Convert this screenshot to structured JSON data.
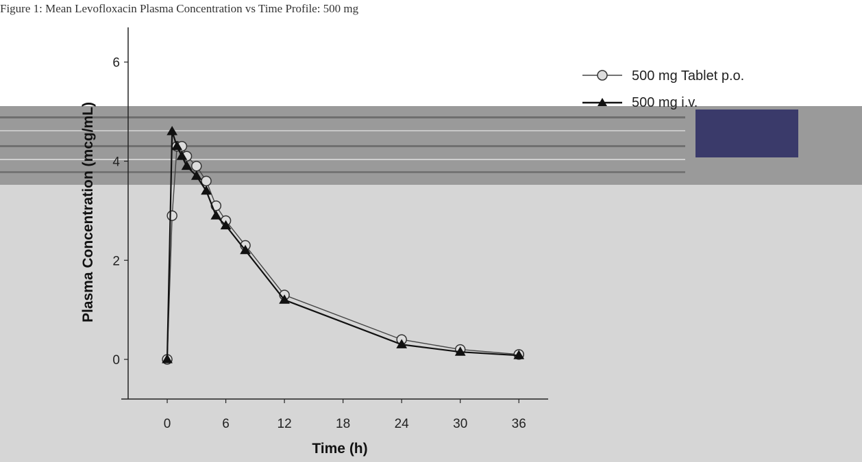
{
  "header": {
    "title": "Figure 1: Mean Levofloxacin Plasma Concentration vs Time Profile: 500 mg"
  },
  "chart_data": {
    "type": "line",
    "xlabel": "Time (h)",
    "ylabel": "Plasma Concentration (mcg/mL)",
    "x_ticks": [
      0,
      6,
      12,
      18,
      24,
      30,
      36
    ],
    "y_ticks": [
      0,
      2,
      4,
      6
    ],
    "xlim": [
      -4,
      39
    ],
    "ylim": [
      -0.8,
      6.7
    ],
    "grid": false,
    "legend_position": "top-right",
    "x": [
      0,
      0.5,
      1,
      1.5,
      2,
      3,
      4,
      5,
      6,
      8,
      12,
      24,
      30,
      36
    ],
    "series": [
      {
        "name": "500 mg Tablet p.o.",
        "marker": "open-circle",
        "color": "#444444",
        "values": [
          0,
          2.9,
          4.3,
          4.3,
          4.1,
          3.9,
          3.6,
          3.1,
          2.8,
          2.3,
          1.3,
          0.4,
          0.2,
          0.1
        ]
      },
      {
        "name": "500 mg i.v.",
        "marker": "filled-triangle",
        "color": "#111111",
        "values": [
          0,
          4.6,
          4.3,
          4.1,
          3.9,
          3.7,
          3.4,
          2.9,
          2.7,
          2.2,
          1.2,
          0.3,
          0.15,
          0.08
        ]
      }
    ]
  }
}
